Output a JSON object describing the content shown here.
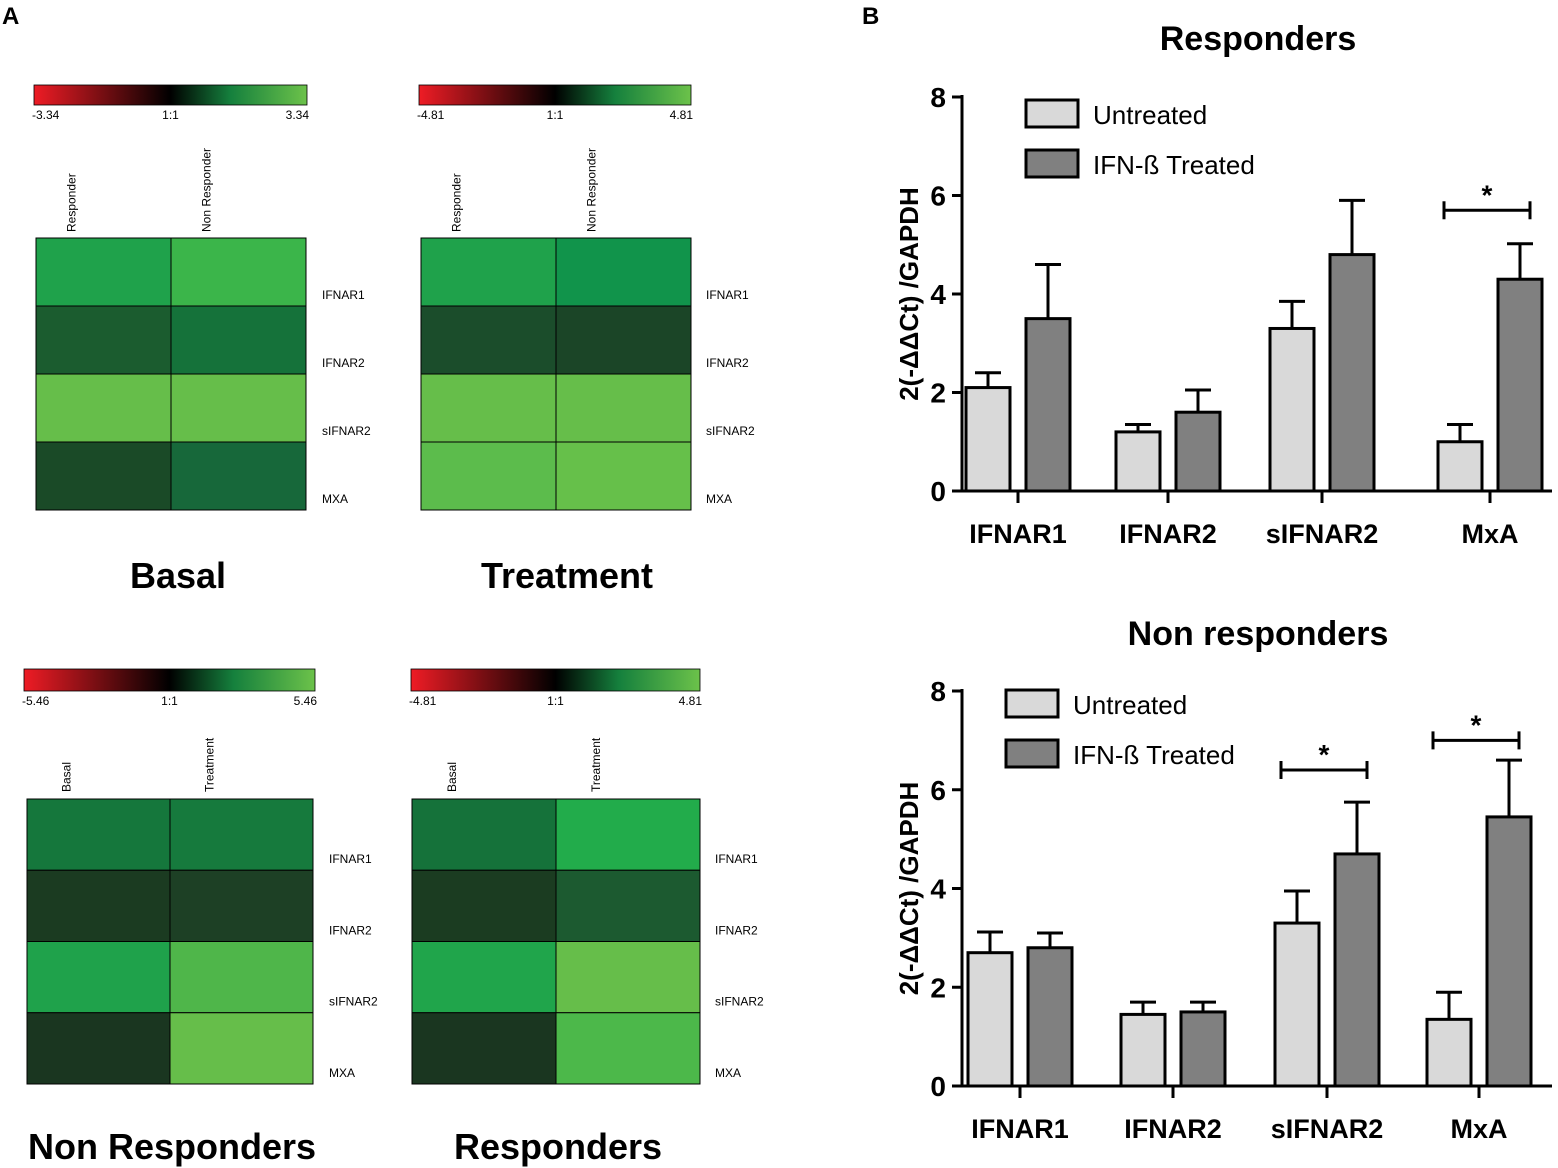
{
  "panel_labels": {
    "a": "A",
    "b": "B"
  },
  "colors": {
    "neg": "#ee1c25",
    "mid": "#000000",
    "pos": "#6cc24a",
    "untreated": "#d9d9d9",
    "treated": "#808080",
    "axis": "#000000"
  },
  "chart_data": [
    {
      "type": "heatmap",
      "title": "Basal",
      "scale": {
        "min_label": "-3.34",
        "mid_label": "1:1",
        "max_label": "3.34"
      },
      "columns": [
        "Responder",
        "Non Responder"
      ],
      "rows": [
        "IFNAR1",
        "IFNAR2",
        "sIFNAR2",
        "MXA"
      ],
      "cell_colors": [
        [
          "#1fa24b",
          "#3bb54a"
        ],
        [
          "#1b5c2f",
          "#15723a"
        ],
        [
          "#66be4a",
          "#66be4a"
        ],
        [
          "#1a4a27",
          "#17683a"
        ]
      ]
    },
    {
      "type": "heatmap",
      "title": "Treatment",
      "scale": {
        "min_label": "-4.81",
        "mid_label": "1:1",
        "max_label": "4.81"
      },
      "columns": [
        "Responder",
        "Non Responder"
      ],
      "rows": [
        "IFNAR1",
        "IFNAR2",
        "sIFNAR2",
        "MXA"
      ],
      "cell_colors": [
        [
          "#1fa24b",
          "#11944b"
        ],
        [
          "#1b4d2b",
          "#1b4527"
        ],
        [
          "#66be4a",
          "#66be4a"
        ],
        [
          "#5cbc4c",
          "#66c04a"
        ]
      ]
    },
    {
      "type": "heatmap",
      "title": "Non Responders",
      "scale": {
        "min_label": "-5.46",
        "mid_label": "1:1",
        "max_label": "5.46"
      },
      "columns": [
        "Basal",
        "Treatment"
      ],
      "rows": [
        "IFNAR1",
        "IFNAR2",
        "sIFNAR2",
        "MXA"
      ],
      "row_labels": [
        "IFNAR1",
        "IFNAR2",
        "sIFNAR2",
        "MXA"
      ],
      "cell_colors": [
        [
          "#15773c",
          "#167a3d"
        ],
        [
          "#1b3b21",
          "#1d4025"
        ],
        [
          "#1fa24b",
          "#4fb64a"
        ],
        [
          "#1a3620",
          "#66be4a"
        ]
      ]
    },
    {
      "type": "heatmap",
      "title": "Responders",
      "scale": {
        "min_label": "-4.81",
        "mid_label": "1:1",
        "max_label": "4.81"
      },
      "columns": [
        "Basal",
        "Treatment"
      ],
      "rows": [
        "IFNAR1",
        "IFNAR2",
        "sIFNAR2",
        "MXA"
      ],
      "cell_colors": [
        [
          "#15723a",
          "#22ac4b"
        ],
        [
          "#1b3c21",
          "#1c5a30"
        ],
        [
          "#20a54b",
          "#66be4a"
        ],
        [
          "#1a3620",
          "#4cb84a"
        ]
      ]
    },
    {
      "type": "bar",
      "title": "Responders",
      "ylabel": "2(-ΔΔCt) /GAPDH",
      "ylim": [
        0,
        8
      ],
      "yticks": [
        "0",
        "2",
        "4",
        "6",
        "8"
      ],
      "categories": [
        "IFNAR1",
        "IFNAR2",
        "sIFNAR2",
        "MxA"
      ],
      "series": [
        {
          "name": "Untreated",
          "values": [
            2.1,
            1.2,
            3.3,
            1.0
          ],
          "errors": [
            0.3,
            0.15,
            0.55,
            0.35
          ]
        },
        {
          "name": "IFN-ß Treated",
          "values": [
            3.5,
            1.6,
            4.8,
            4.3
          ],
          "errors": [
            1.1,
            0.45,
            1.1,
            0.72
          ]
        }
      ],
      "significance": [
        {
          "category": "MxA",
          "label": "*",
          "level": 5.7
        }
      ]
    },
    {
      "type": "bar",
      "title": "Non responders",
      "ylabel": "2(-ΔΔCt) /GAPDH",
      "ylim": [
        0,
        8
      ],
      "yticks": [
        "0",
        "2",
        "4",
        "6",
        "8"
      ],
      "categories": [
        "IFNAR1",
        "IFNAR2",
        "sIFNAR2",
        "MxA"
      ],
      "series": [
        {
          "name": "Untreated",
          "values": [
            2.7,
            1.45,
            3.3,
            1.35
          ],
          "errors": [
            0.42,
            0.25,
            0.65,
            0.55
          ]
        },
        {
          "name": "IFN-ß Treated",
          "values": [
            2.8,
            1.5,
            4.7,
            5.45
          ],
          "errors": [
            0.3,
            0.2,
            1.05,
            1.15
          ]
        }
      ],
      "significance": [
        {
          "category": "sIFNAR2",
          "label": "*",
          "level": 6.4
        },
        {
          "category": "MxA",
          "label": "*",
          "level": 7.0
        }
      ]
    }
  ]
}
